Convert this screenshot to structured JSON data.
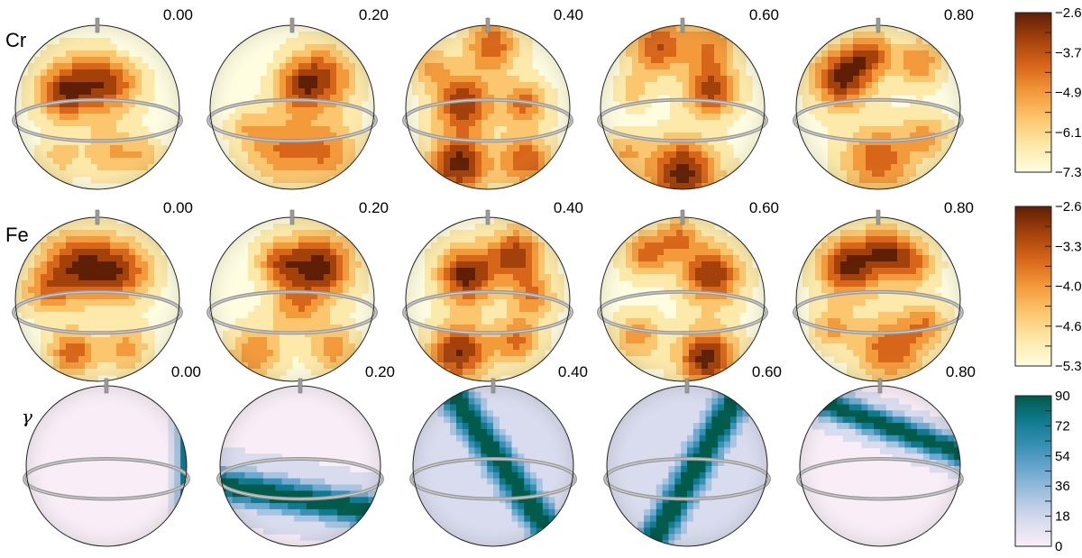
{
  "chart_data": {
    "type": "heatmap",
    "title": "",
    "rotation_phases": [
      "0.00",
      "0.20",
      "0.40",
      "0.60",
      "0.80"
    ],
    "rows": [
      {
        "label": "Cr",
        "colormap": "orange",
        "colorbar_ticks": [
          "−2.6",
          "−3.7",
          "−4.9",
          "−6.1",
          "−7.3"
        ],
        "range": [
          -7.3,
          -2.6
        ],
        "maps": [
          {
            "blobs": [
              {
                "u": -0.25,
                "v": 0.25,
                "a": 1.0,
                "s": 0.28
              },
              {
                "u": 0.2,
                "v": 0.3,
                "a": 0.85,
                "s": 0.25
              },
              {
                "u": -0.5,
                "v": 0.15,
                "a": 0.55,
                "s": 0.2
              },
              {
                "u": 0.15,
                "v": -0.55,
                "a": 0.55,
                "s": 0.22
              },
              {
                "u": -0.45,
                "v": -0.6,
                "a": 0.45,
                "s": 0.18
              },
              {
                "u": 0.55,
                "v": -0.6,
                "a": 0.45,
                "s": 0.18
              },
              {
                "u": 0.45,
                "v": 0.8,
                "a": -0.35,
                "s": 0.15
              }
            ]
          },
          {
            "blobs": [
              {
                "u": 0.35,
                "v": 0.35,
                "a": 1.0,
                "s": 0.28
              },
              {
                "u": 0.05,
                "v": 0.25,
                "a": 0.6,
                "s": 0.2
              },
              {
                "u": -0.15,
                "v": -0.5,
                "a": 0.75,
                "s": 0.3
              },
              {
                "u": 0.45,
                "v": -0.55,
                "a": 0.7,
                "s": 0.25
              },
              {
                "u": -0.55,
                "v": -0.25,
                "a": 0.35,
                "s": 0.15
              }
            ]
          },
          {
            "blobs": [
              {
                "u": -0.3,
                "v": 0.05,
                "a": 0.85,
                "s": 0.25
              },
              {
                "u": 0.45,
                "v": 0.05,
                "a": 0.6,
                "s": 0.2
              },
              {
                "u": 0.05,
                "v": 0.75,
                "a": 0.7,
                "s": 0.22
              },
              {
                "u": -0.35,
                "v": -0.7,
                "a": 0.95,
                "s": 0.25
              },
              {
                "u": 0.45,
                "v": -0.65,
                "a": 0.7,
                "s": 0.22
              },
              {
                "u": -0.7,
                "v": 0.5,
                "a": 0.4,
                "s": 0.18
              }
            ]
          },
          {
            "blobs": [
              {
                "u": 0.35,
                "v": 0.2,
                "a": 0.8,
                "s": 0.22
              },
              {
                "u": -0.3,
                "v": 0.75,
                "a": 0.75,
                "s": 0.25
              },
              {
                "u": 0.35,
                "v": 0.75,
                "a": 0.55,
                "s": 0.22
              },
              {
                "u": 0.0,
                "v": -0.8,
                "a": 1.0,
                "s": 0.3
              },
              {
                "u": -0.7,
                "v": -0.55,
                "a": 0.4,
                "s": 0.18
              },
              {
                "u": -0.6,
                "v": 0.2,
                "a": 0.3,
                "s": 0.15
              }
            ]
          },
          {
            "blobs": [
              {
                "u": -0.45,
                "v": 0.35,
                "a": 1.0,
                "s": 0.25
              },
              {
                "u": -0.1,
                "v": 0.65,
                "a": 0.7,
                "s": 0.2
              },
              {
                "u": 0.5,
                "v": 0.55,
                "a": 0.6,
                "s": 0.2
              },
              {
                "u": 0.0,
                "v": -0.65,
                "a": 0.75,
                "s": 0.3
              },
              {
                "u": 0.6,
                "v": -0.35,
                "a": 0.45,
                "s": 0.2
              }
            ]
          }
        ]
      },
      {
        "label": "Fe",
        "colormap": "orange",
        "colorbar_ticks": [
          "−2.6",
          "−3.3",
          "−4.0",
          "−4.6",
          "−5.3"
        ],
        "range": [
          -5.3,
          -2.6
        ],
        "maps": [
          {
            "blobs": [
              {
                "u": -0.25,
                "v": 0.4,
                "a": 1.0,
                "s": 0.3
              },
              {
                "u": 0.3,
                "v": 0.35,
                "a": 0.85,
                "s": 0.26
              },
              {
                "u": -0.65,
                "v": 0.1,
                "a": 0.5,
                "s": 0.2
              },
              {
                "u": -0.3,
                "v": -0.65,
                "a": 0.8,
                "s": 0.2
              },
              {
                "u": 0.35,
                "v": -0.6,
                "a": 0.55,
                "s": 0.2
              }
            ]
          },
          {
            "blobs": [
              {
                "u": 0.35,
                "v": 0.4,
                "a": 1.0,
                "s": 0.28
              },
              {
                "u": -0.15,
                "v": 0.45,
                "a": 0.65,
                "s": 0.2
              },
              {
                "u": 0.05,
                "v": -0.1,
                "a": 0.5,
                "s": 0.22
              },
              {
                "u": -0.45,
                "v": -0.65,
                "a": 0.6,
                "s": 0.22
              },
              {
                "u": 0.5,
                "v": -0.6,
                "a": 0.55,
                "s": 0.2
              }
            ]
          },
          {
            "blobs": [
              {
                "u": -0.25,
                "v": 0.3,
                "a": 0.9,
                "s": 0.25
              },
              {
                "u": 0.35,
                "v": 0.55,
                "a": 0.75,
                "s": 0.22
              },
              {
                "u": 0.55,
                "v": 0.05,
                "a": 0.5,
                "s": 0.2
              },
              {
                "u": -0.35,
                "v": -0.65,
                "a": 0.85,
                "s": 0.25
              },
              {
                "u": 0.35,
                "v": -0.5,
                "a": 0.55,
                "s": 0.2
              }
            ]
          },
          {
            "blobs": [
              {
                "u": 0.35,
                "v": 0.3,
                "a": 0.9,
                "s": 0.25
              },
              {
                "u": -0.45,
                "v": 0.55,
                "a": 0.6,
                "s": 0.2
              },
              {
                "u": -0.05,
                "v": 0.75,
                "a": 0.55,
                "s": 0.18
              },
              {
                "u": 0.3,
                "v": -0.7,
                "a": 1.0,
                "s": 0.25
              },
              {
                "u": -0.55,
                "v": -0.45,
                "a": 0.5,
                "s": 0.2
              }
            ]
          },
          {
            "blobs": [
              {
                "u": -0.35,
                "v": 0.4,
                "a": 1.0,
                "s": 0.26
              },
              {
                "u": 0.35,
                "v": 0.45,
                "a": 0.75,
                "s": 0.22
              },
              {
                "u": 0.05,
                "v": 0.65,
                "a": 0.55,
                "s": 0.18
              },
              {
                "u": 0.15,
                "v": -0.6,
                "a": 0.75,
                "s": 0.28
              },
              {
                "u": -0.55,
                "v": -0.35,
                "a": 0.45,
                "s": 0.18
              },
              {
                "u": 0.6,
                "v": -0.3,
                "a": 0.5,
                "s": 0.18
              }
            ]
          }
        ]
      },
      {
        "label": "γ",
        "colormap": "teal",
        "colorbar_ticks": [
          "90",
          "72",
          "54",
          "36",
          "18",
          "0"
        ],
        "range": [
          0,
          90
        ],
        "maps": [
          {
            "bands": [
              {
                "angle": 0,
                "offset": 1.02,
                "a": 0.9,
                "s": 0.09
              }
            ],
            "base": 0.05
          },
          {
            "bands": [
              {
                "angle": 80,
                "offset": -0.4,
                "a": 1.0,
                "s": 0.14
              }
            ],
            "base": 0.08
          },
          {
            "bands": [
              {
                "angle": 35,
                "offset": 0.1,
                "a": 1.0,
                "s": 0.14
              }
            ],
            "base": 0.1
          },
          {
            "bands": [
              {
                "angle": -30,
                "offset": 0.1,
                "a": 1.0,
                "s": 0.14
              }
            ],
            "base": 0.1
          },
          {
            "bands": [
              {
                "angle": 70,
                "offset": 0.5,
                "a": 1.0,
                "s": 0.12
              }
            ],
            "base": 0.06
          }
        ]
      }
    ]
  },
  "colors": {
    "orange_scale": [
      "#fffde0",
      "#fde9a9",
      "#fcc66e",
      "#f39a3b",
      "#d8661a",
      "#a3410b",
      "#5f1f04"
    ],
    "teal_scale": [
      "#f9eef7",
      "#d8dcee",
      "#a8c4e0",
      "#6fa9cf",
      "#3990b6",
      "#0f7a8e",
      "#015a4a"
    ],
    "contour": "#555555",
    "axis_ring": "#9a9a9a",
    "outline": "#222222"
  }
}
